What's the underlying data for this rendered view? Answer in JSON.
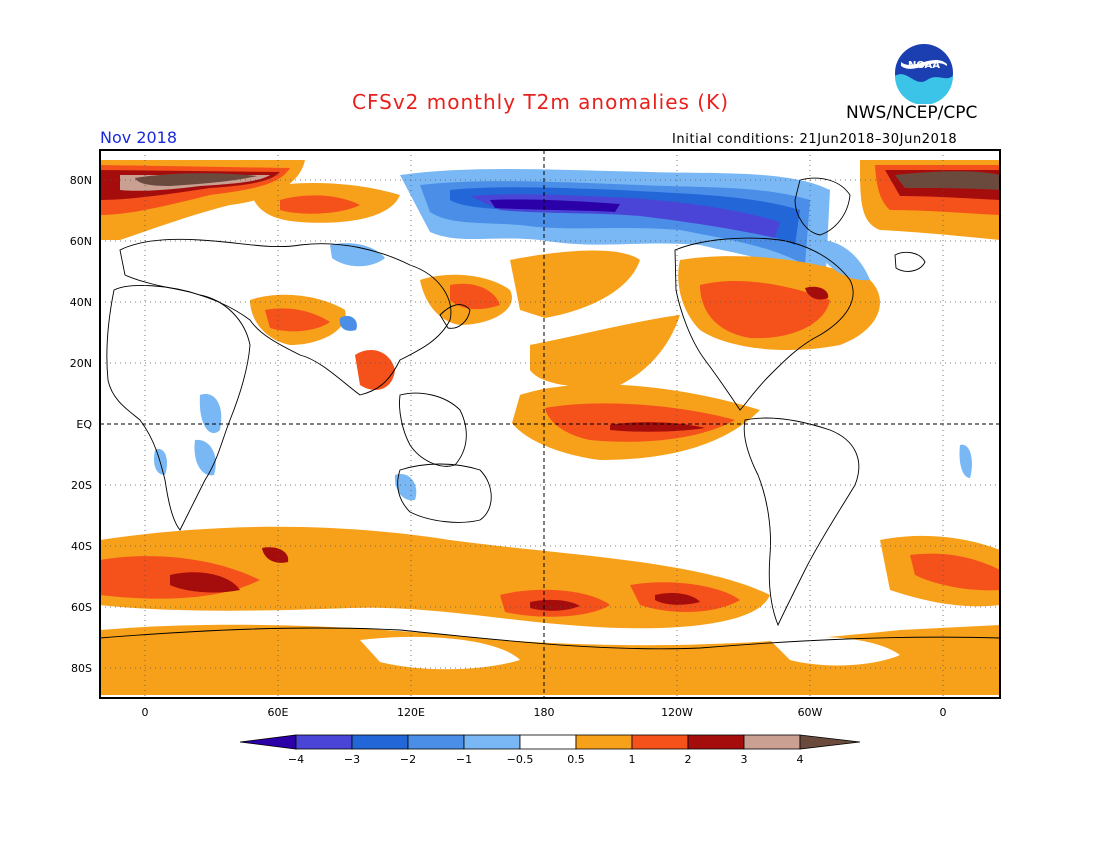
{
  "header": {
    "title": "CFSv2 monthly T2m anomalies (K)",
    "agency": "NWS/NCEP/CPC",
    "month": "Nov 2018",
    "initial_conditions": "Initial conditions: 21Jun2018–30Jun2018",
    "logo_text": "NOAA"
  },
  "map": {
    "lat_labels": [
      "80N",
      "60N",
      "40N",
      "20N",
      "EQ",
      "20S",
      "40S",
      "60S",
      "80S"
    ],
    "lon_labels": [
      "0",
      "60E",
      "120E",
      "180",
      "120W",
      "60W",
      "0"
    ]
  },
  "colorbar": {
    "labels": [
      "−4",
      "−3",
      "−2",
      "−1",
      "−0.5",
      "0.5",
      "1",
      "2",
      "3",
      "4"
    ],
    "colors": [
      "#2c00a8",
      "#4a45d6",
      "#2266d8",
      "#4a8ee8",
      "#79b8f4",
      "#ffffff",
      "#f7a11a",
      "#f5511b",
      "#a50d0d",
      "#c9a092",
      "#6b4a3e"
    ]
  }
}
